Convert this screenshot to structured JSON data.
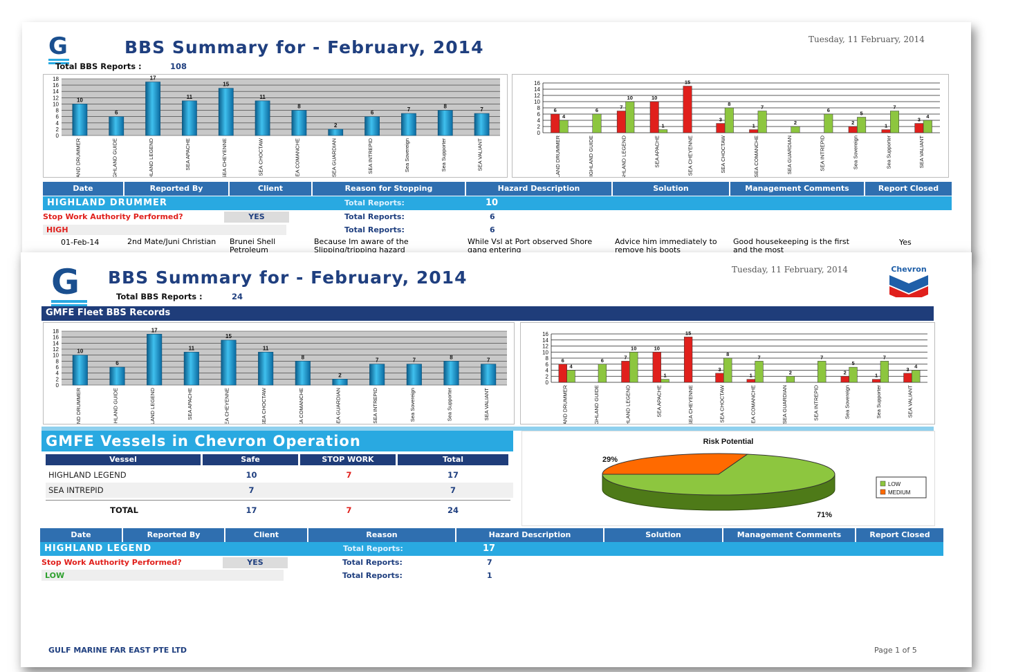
{
  "colors": {
    "navy": "#1f3d7a",
    "accent": "#29a9e1",
    "red": "#e0201c",
    "green": "#8dc63f",
    "orange": "#ff6a00"
  },
  "page1": {
    "title": "BBS Summary for - February, 2014",
    "date": "Tuesday, 11 February, 2014",
    "total_label": "Total BBS Reports :",
    "total_value": "108",
    "table_headers": [
      "Date",
      "Reported By",
      "Client",
      "Reason for Stopping",
      "Hazard Description",
      "Solution",
      "Management Comments",
      "Report Closed"
    ],
    "vessel": "HIGHLAND DRUMMER",
    "vessel_total_label": "Total Reports:",
    "vessel_total": "10",
    "swa_label": "Stop Work Authority Performed?",
    "swa_value": "YES",
    "swa_total_label": "Total Reports:",
    "swa_total": "6",
    "risk_label": "HIGH",
    "risk_total_label": "Total Reports:",
    "risk_total": "6",
    "row": {
      "date": "01-Feb-14",
      "reported_by": "2nd Mate/Juni Christian",
      "client": "Brunei Shell Petroleum",
      "reason": "Because Im aware of the Slipping/tripping hazard",
      "hazard": "While Vsl at Port observed Shore gang entering",
      "solution": "Advice him immediately to remove his boots",
      "comments": "Good housekeeping is the first and the most",
      "closed": "Yes"
    }
  },
  "page2": {
    "title": "BBS Summary for - February, 2014",
    "date": "Tuesday, 11 February, 2014",
    "brand": "Chevron",
    "total_label": "Total BBS Reports :",
    "total_value": "24",
    "fleet_bar": "GMFE Fleet BBS Records",
    "ops_title": "GMFE Vessels in Chevron Operation",
    "ops_headers": [
      "Vessel",
      "Safe",
      "STOP WORK",
      "Total"
    ],
    "ops_rows": [
      {
        "vessel": "HIGHLAND LEGEND",
        "safe": "10",
        "stop": "7",
        "total": "17"
      },
      {
        "vessel": "SEA INTREPID",
        "safe": "7",
        "stop": "",
        "total": "7"
      }
    ],
    "ops_total": {
      "vessel": "TOTAL",
      "safe": "17",
      "stop": "7",
      "total": "24"
    },
    "table_headers": [
      "Date",
      "Reported By",
      "Client",
      "Reason",
      "Hazard Description",
      "Solution",
      "Management Comments",
      "Report Closed"
    ],
    "vessel": "HIGHLAND LEGEND",
    "vessel_total_label": "Total Reports:",
    "vessel_total": "17",
    "swa_label": "Stop Work Authority Performed?",
    "swa_value": "YES",
    "swa_total_label": "Total Reports:",
    "swa_total": "7",
    "risk_label": "LOW",
    "risk_total_label": "Total Reports:",
    "risk_total": "1",
    "footer_left": "GULF MARINE FAR EAST PTE LTD",
    "footer_right": "Page 1 of 5"
  },
  "chart_data": [
    {
      "type": "bar",
      "id": "p1-left",
      "categories": [
        "HIGHLAND DRUMMER",
        "HIGHLAND GUIDE",
        "HIGHLAND LEGEND",
        "SEA APACHE",
        "SEA CHEYENNE",
        "SEA CHOCTAW",
        "SEA COMANCHE",
        "SEA GUARDIAN",
        "SEA INTREPID",
        "Sea Sovereign",
        "Sea Supporter",
        "SEA VALIANT"
      ],
      "values": [
        10,
        6,
        17,
        11,
        15,
        11,
        8,
        2,
        6,
        7,
        8,
        7
      ],
      "ylim": [
        0,
        18
      ],
      "yticks": [
        0,
        2,
        4,
        6,
        8,
        10,
        12,
        14,
        16,
        18
      ],
      "grid": true
    },
    {
      "type": "bar",
      "id": "p1-right",
      "categories": [
        "HIGHLAND DRUMMER",
        "HIGHLAND GUIDE",
        "HIGHLAND LEGEND",
        "SEA APACHE",
        "SEA CHEYENNE",
        "SEA CHOCTAW",
        "SEA COMANCHE",
        "SEA GUARDIAN",
        "SEA INTREPID",
        "Sea Sovereign",
        "Sea Supporter",
        "SEA VALIANT"
      ],
      "series": [
        {
          "color": "#e0201c",
          "values": [
            6,
            0,
            7,
            10,
            15,
            3,
            1,
            0,
            0,
            2,
            1,
            3
          ]
        },
        {
          "color": "#8dc63f",
          "values": [
            4,
            6,
            10,
            1,
            0,
            8,
            7,
            2,
            6,
            5,
            7,
            4
          ]
        }
      ],
      "ylim": [
        0,
        16
      ],
      "yticks": [
        0,
        2,
        4,
        6,
        8,
        10,
        12,
        14,
        16
      ],
      "grid": true
    },
    {
      "type": "bar",
      "id": "p2-left",
      "categories": [
        "HIGHLAND DRUMMER",
        "HIGHLAND GUIDE",
        "HIGHLAND LEGEND",
        "SEA APACHE",
        "SEA CHEYENNE",
        "SEA CHOCTAW",
        "SEA COMANCHE",
        "SEA GUARDIAN",
        "SEA INTREPID",
        "Sea Sovereign",
        "Sea Supporter",
        "SEA VALIANT"
      ],
      "values": [
        10,
        6,
        17,
        11,
        15,
        11,
        8,
        2,
        7,
        7,
        8,
        7
      ],
      "ylim": [
        0,
        18
      ],
      "yticks": [
        0,
        2,
        4,
        6,
        8,
        10,
        12,
        14,
        16,
        18
      ],
      "grid": true
    },
    {
      "type": "bar",
      "id": "p2-right",
      "categories": [
        "HIGHLAND DRUMMER",
        "HIGHLAND GUIDE",
        "HIGHLAND LEGEND",
        "SEA APACHE",
        "SEA CHEYENNE",
        "SEA CHOCTAW",
        "SEA COMANCHE",
        "SEA GUARDIAN",
        "SEA INTREPID",
        "Sea Sovereign",
        "Sea Supporter",
        "SEA VALIANT"
      ],
      "series": [
        {
          "color": "#e0201c",
          "values": [
            6,
            0,
            7,
            10,
            15,
            3,
            1,
            0,
            0,
            2,
            1,
            3
          ]
        },
        {
          "color": "#8dc63f",
          "values": [
            4,
            6,
            10,
            1,
            0,
            8,
            7,
            2,
            7,
            5,
            7,
            4
          ]
        }
      ],
      "ylim": [
        0,
        16
      ],
      "yticks": [
        0,
        2,
        4,
        6,
        8,
        10,
        12,
        14,
        16
      ],
      "grid": true
    },
    {
      "type": "pie",
      "id": "p2-pie",
      "title": "Risk Potential",
      "labels": [
        "LOW",
        "MEDIUM"
      ],
      "values": [
        71,
        29
      ],
      "value_labels": [
        "71%",
        "29%"
      ],
      "colors": [
        "#8dc63f",
        "#ff6a00"
      ],
      "legend": "right"
    }
  ]
}
